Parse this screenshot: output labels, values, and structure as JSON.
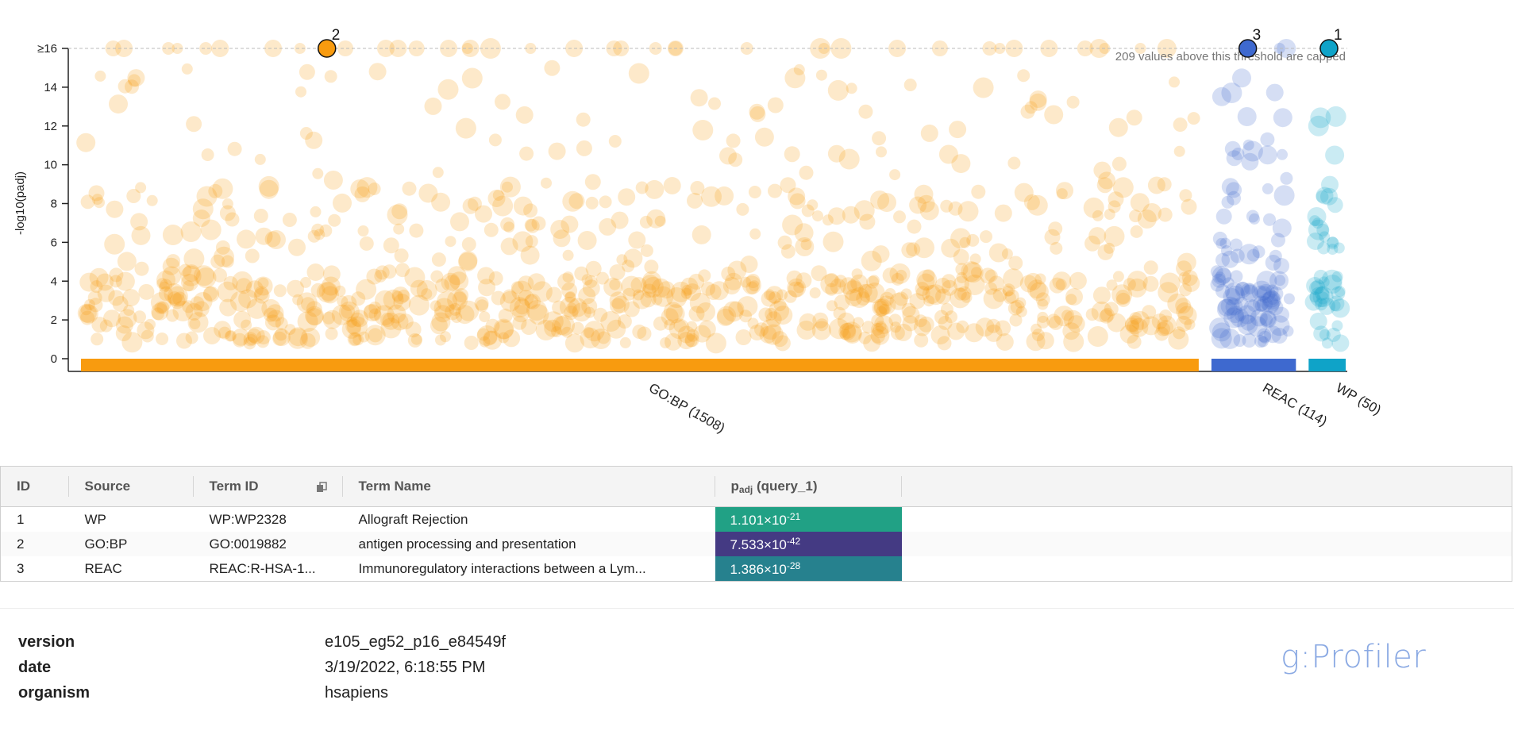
{
  "chart_data": {
    "type": "scatter",
    "title": "",
    "ylabel": "-log10(padj)",
    "ylim": [
      0,
      16
    ],
    "yticks": [
      "0",
      "2",
      "4",
      "6",
      "8",
      "10",
      "12",
      "14",
      "≥16"
    ],
    "cap_value": 16,
    "cap_note": "209 values above this threshold are capped",
    "sources": [
      {
        "name": "GO:BP",
        "label": "GO:BP (1508)",
        "count": 1508,
        "color": "#f89b0f"
      },
      {
        "name": "REAC",
        "label": "REAC (114)",
        "count": 114,
        "color": "#3e69cf"
      },
      {
        "name": "WP",
        "label": "WP (50)",
        "count": 50,
        "color": "#0fa3c8"
      }
    ],
    "highlighted": [
      {
        "id": "1",
        "source": "WP",
        "value": 16,
        "capped": true
      },
      {
        "id": "2",
        "source": "GO:BP",
        "value": 16,
        "capped": true
      },
      {
        "id": "3",
        "source": "REAC",
        "value": 16,
        "capped": true
      }
    ]
  },
  "table": {
    "headers": {
      "id": "ID",
      "source": "Source",
      "term_id": "Term ID",
      "term_name": "Term Name",
      "padj_main": "p",
      "padj_sub": "adj",
      "padj_query": "(query_1)"
    },
    "rows": [
      {
        "id": "1",
        "source": "WP",
        "term_id": "WP:WP2328",
        "term_name": "Allograft Rejection",
        "p_mant": "1.101×10",
        "p_exp": "-21",
        "color": "#21a185"
      },
      {
        "id": "2",
        "source": "GO:BP",
        "term_id": "GO:0019882",
        "term_name": "antigen processing and presentation",
        "p_mant": "7.533×10",
        "p_exp": "-42",
        "color": "#443a83"
      },
      {
        "id": "3",
        "source": "REAC",
        "term_id": "REAC:R-HSA-1...",
        "term_name": "Immunoregulatory interactions between a Lym...",
        "p_mant": "1.386×10",
        "p_exp": "-28",
        "color": "#26818e"
      }
    ]
  },
  "meta": {
    "version_label": "version",
    "version": "e105_eg52_p16_e84549f",
    "date_label": "date",
    "date": "3/19/2022, 6:18:55 PM",
    "organism_label": "organism",
    "organism": "hsapiens"
  },
  "brand": "g:Profiler",
  "icons": {
    "copy": "copy-icon"
  }
}
